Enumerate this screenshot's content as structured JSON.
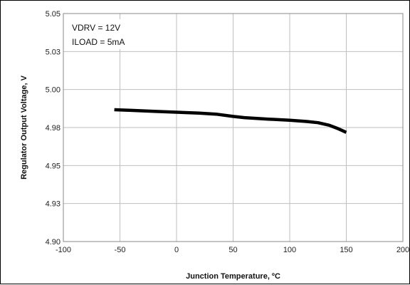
{
  "chart_data": {
    "type": "line",
    "title": "",
    "xlabel": "Junction Temperature, ºC",
    "ylabel": "Regulator Output Voltage, V",
    "xlim": [
      -100,
      200
    ],
    "ylim": [
      4.9,
      5.05
    ],
    "x_ticks": [
      "-100",
      "-50",
      "0",
      "50",
      "100",
      "150",
      "200"
    ],
    "y_ticks": [
      "4.90",
      "4.93",
      "4.95",
      "4.98",
      "5.00",
      "5.03",
      "5.05"
    ],
    "grid": true,
    "legend": "none",
    "annotations": [
      "VDRV = 12V",
      "ILOAD = 5mA"
    ],
    "series": [
      {
        "color": "#000000",
        "x": [
          -55,
          -40,
          -20,
          0,
          20,
          35,
          50,
          60,
          80,
          100,
          115,
          125,
          135,
          142,
          150
        ],
        "y": [
          4.9867,
          4.9863,
          4.9857,
          4.9851,
          4.9845,
          4.9838,
          4.9823,
          4.9815,
          4.9806,
          4.9798,
          4.979,
          4.9782,
          4.9765,
          4.9745,
          4.9718
        ]
      }
    ]
  }
}
